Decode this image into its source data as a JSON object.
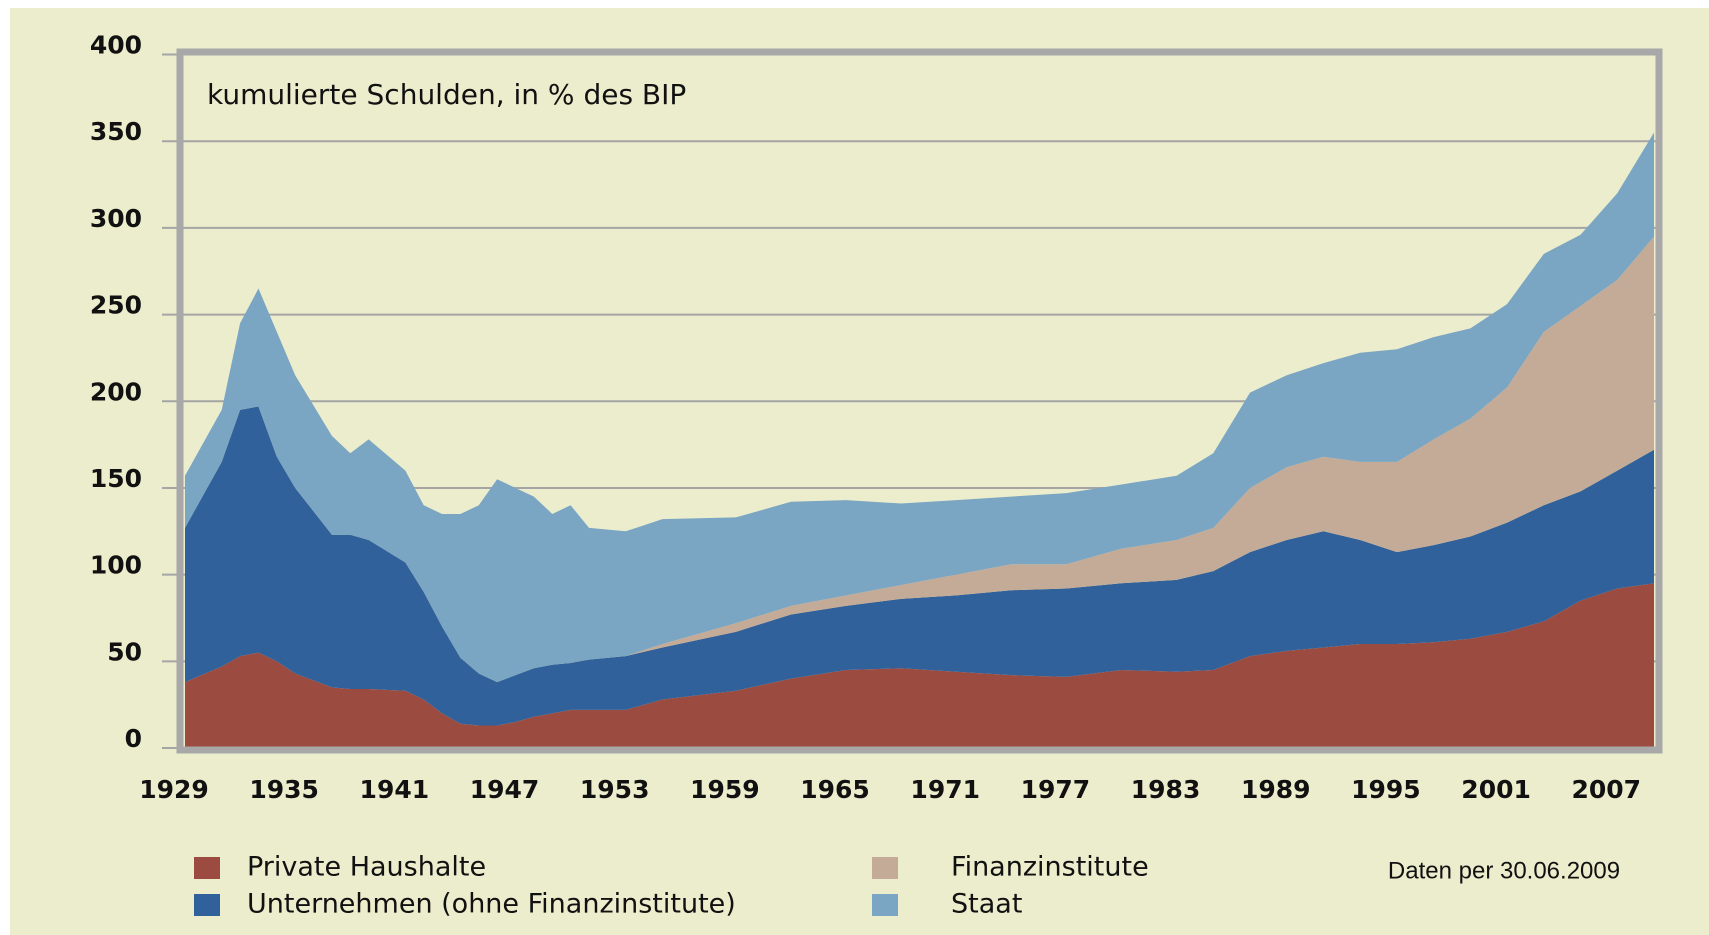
{
  "chart_data": {
    "type": "stacked_area",
    "title": "kumulierte Schulden, in % des BIP",
    "annotation": "Daten per 30.06.2009",
    "x": [
      1929,
      1931,
      1932,
      1933,
      1934,
      1935,
      1937,
      1938,
      1939,
      1941,
      1942,
      1943,
      1944,
      1945,
      1946,
      1947,
      1948,
      1949,
      1950,
      1951,
      1953,
      1955,
      1959,
      1962,
      1965,
      1968,
      1971,
      1974,
      1977,
      1980,
      1983,
      1985,
      1987,
      1989,
      1991,
      1993,
      1995,
      1997,
      1999,
      2001,
      2003,
      2005,
      2007,
      2009
    ],
    "series": [
      {
        "name": "Private Haushalte",
        "color": "#9b4b40",
        "values": [
          38,
          47,
          53,
          55,
          50,
          43,
          35,
          34,
          34,
          33,
          28,
          20,
          14,
          13,
          13,
          15,
          18,
          20,
          22,
          22,
          22,
          28,
          33,
          40,
          45,
          46,
          44,
          42,
          41,
          45,
          44,
          45,
          53,
          56,
          58,
          60,
          60,
          61,
          63,
          67,
          73,
          85,
          92,
          95
        ]
      },
      {
        "name": "Unternehmen (ohne Finanzinstitute)",
        "color": "#31619a",
        "values": [
          89,
          118,
          142,
          142,
          118,
          107,
          88,
          89,
          86,
          74,
          62,
          50,
          38,
          30,
          25,
          27,
          28,
          28,
          27,
          29,
          31,
          30,
          34,
          37,
          37,
          40,
          44,
          49,
          51,
          50,
          53,
          57,
          60,
          64,
          67,
          60,
          53,
          56,
          59,
          63,
          67,
          63,
          68,
          77
        ]
      },
      {
        "name": "Finanzinstitute",
        "color": "#c4ab97",
        "values": [
          0,
          0,
          0,
          0,
          0,
          0,
          0,
          0,
          0,
          0,
          0,
          0,
          0,
          0,
          0,
          0,
          0,
          0,
          0,
          0,
          0,
          2,
          5,
          5,
          6,
          8,
          12,
          15,
          14,
          20,
          23,
          25,
          37,
          42,
          43,
          45,
          52,
          61,
          68,
          78,
          100,
          107,
          110,
          123
        ]
      },
      {
        "name": "Staat",
        "color": "#7aa5c3",
        "values": [
          30,
          30,
          50,
          68,
          72,
          65,
          57,
          47,
          58,
          53,
          50,
          65,
          83,
          97,
          117,
          108,
          99,
          87,
          91,
          76,
          72,
          72,
          61,
          60,
          55,
          47,
          43,
          39,
          41,
          37,
          37,
          43,
          55,
          53,
          54,
          63,
          65,
          59,
          52,
          48,
          45,
          41,
          50,
          60
        ]
      }
    ],
    "xlim": [
      1929,
      2009
    ],
    "ylim": [
      0,
      400
    ],
    "xticks": [
      1929,
      1935,
      1941,
      1947,
      1953,
      1959,
      1965,
      1971,
      1977,
      1983,
      1989,
      1995,
      2001,
      2007
    ],
    "yticks": [
      0,
      50,
      100,
      150,
      200,
      250,
      300,
      350,
      400
    ],
    "grid": true
  }
}
